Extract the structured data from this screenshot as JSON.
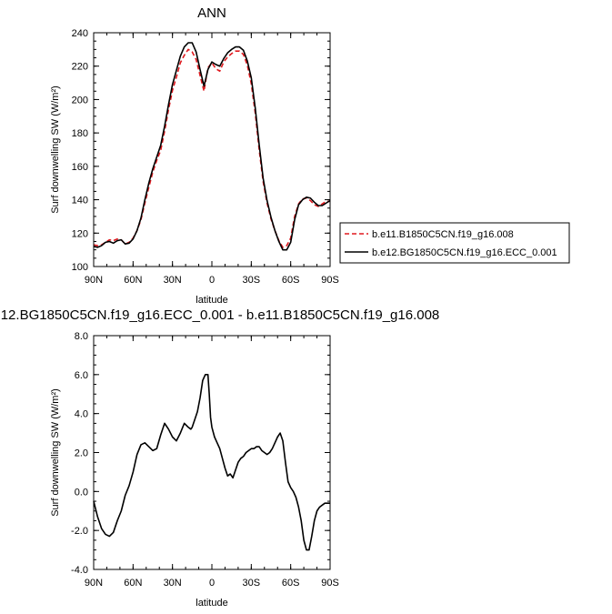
{
  "chart_data": [
    {
      "type": "line",
      "title": "ANN",
      "xlabel": "latitude",
      "ylabel": "Surf downwelling SW (W/m²)",
      "ylim": [
        100,
        240
      ],
      "xlim": [
        90,
        -90
      ],
      "x_ticks": [
        {
          "value": 90,
          "label": "90N"
        },
        {
          "value": 60,
          "label": "60N"
        },
        {
          "value": 30,
          "label": "30N"
        },
        {
          "value": 0,
          "label": "0"
        },
        {
          "value": -30,
          "label": "30S"
        },
        {
          "value": -60,
          "label": "60S"
        },
        {
          "value": -90,
          "label": "90S"
        }
      ],
      "y_ticks": [
        {
          "value": 100,
          "label": "100"
        },
        {
          "value": 120,
          "label": "120"
        },
        {
          "value": 140,
          "label": "140"
        },
        {
          "value": 160,
          "label": "160"
        },
        {
          "value": 180,
          "label": "180"
        },
        {
          "value": 200,
          "label": "200"
        },
        {
          "value": 220,
          "label": "220"
        },
        {
          "value": 240,
          "label": "240"
        }
      ],
      "legend": {
        "placement": "right"
      },
      "series": [
        {
          "name": "b.e11.B1850C5CN.f19_g16.008",
          "color": "#e0191e",
          "dashed": true,
          "x": [
            90,
            87,
            84,
            81,
            78,
            75,
            72,
            69,
            66,
            63,
            60,
            57,
            54,
            51,
            48,
            45,
            42,
            39,
            36,
            33,
            30,
            27,
            24,
            21,
            18,
            15,
            12,
            9,
            6,
            3,
            0,
            -3,
            -6,
            -9,
            -12,
            -15,
            -18,
            -21,
            -24,
            -27,
            -30,
            -33,
            -36,
            -39,
            -42,
            -45,
            -48,
            -51,
            -54,
            -57,
            -60,
            -63,
            -66,
            -69,
            -72,
            -75,
            -78,
            -81,
            -84,
            -87,
            -90
          ],
          "y": [
            113,
            112.5,
            113,
            114.5,
            116,
            115.5,
            116.5,
            116,
            113.5,
            114.5,
            117,
            121.5,
            128,
            138,
            147.5,
            156.5,
            163.5,
            169.5,
            181,
            194,
            205.5,
            213.5,
            222,
            226.5,
            230,
            228.5,
            224,
            214.5,
            205,
            219,
            222,
            218.5,
            217,
            222.5,
            225.5,
            227.5,
            229,
            229,
            227,
            220.5,
            209.5,
            192,
            170,
            151,
            138,
            128.5,
            121.5,
            115.5,
            111.5,
            112.5,
            117,
            130,
            137.5,
            140.5,
            141,
            139.5,
            137,
            136,
            137.5,
            139,
            139
          ]
        },
        {
          "name": "b.e12.BG1850C5CN.f19_g16.ECC_0.001",
          "color": "#000000",
          "dashed": false,
          "x": [
            90,
            87,
            84,
            81,
            78,
            75,
            72,
            69,
            66,
            63,
            60,
            57,
            54,
            51,
            48,
            45,
            42,
            39,
            36,
            33,
            30,
            27,
            24,
            21,
            18,
            15,
            12,
            9,
            6,
            3,
            0,
            -3,
            -6,
            -9,
            -12,
            -15,
            -18,
            -21,
            -24,
            -27,
            -30,
            -33,
            -36,
            -39,
            -42,
            -45,
            -48,
            -51,
            -54,
            -57,
            -60,
            -63,
            -66,
            -69,
            -72,
            -75,
            -78,
            -81,
            -84,
            -87,
            -90
          ],
          "y": [
            112,
            111.5,
            112.5,
            114.5,
            115,
            114,
            115.5,
            116,
            113.5,
            114,
            116.5,
            121.5,
            129,
            140,
            150,
            158.5,
            165.5,
            172.5,
            184,
            197,
            209,
            217.5,
            226,
            231.5,
            234,
            234,
            228.5,
            218,
            208,
            218,
            222.5,
            221,
            220,
            224.5,
            228,
            230,
            231.5,
            231.5,
            229.5,
            223,
            213,
            195,
            173,
            153,
            139.5,
            129.5,
            121.5,
            115,
            110,
            110,
            114.5,
            128,
            137,
            140,
            141.5,
            141,
            138.5,
            136.5,
            136.5,
            138,
            139.5
          ]
        }
      ]
    },
    {
      "type": "line",
      "title": "12.BG1850C5CN.f19_g16.ECC_0.001 - b.e11.B1850C5CN.f19_g16.008",
      "xlabel": "latitude",
      "ylabel": "Surf downwelling SW (W/m²)",
      "ylim": [
        -4,
        8
      ],
      "xlim": [
        90,
        -90
      ],
      "x_ticks": [
        {
          "value": 90,
          "label": "90N"
        },
        {
          "value": 60,
          "label": "60N"
        },
        {
          "value": 30,
          "label": "30N"
        },
        {
          "value": 0,
          "label": "0"
        },
        {
          "value": -30,
          "label": "30S"
        },
        {
          "value": -60,
          "label": "60S"
        },
        {
          "value": -90,
          "label": "90S"
        }
      ],
      "y_ticks": [
        {
          "value": -4,
          "label": "-4.0"
        },
        {
          "value": -2,
          "label": "-2.0"
        },
        {
          "value": 0,
          "label": "0.0"
        },
        {
          "value": 2,
          "label": "2.0"
        },
        {
          "value": 4,
          "label": "4.0"
        },
        {
          "value": 6,
          "label": "6.0"
        },
        {
          "value": 8,
          "label": "8.0"
        }
      ],
      "series": [
        {
          "color": "#000000",
          "dashed": false,
          "x": [
            90,
            87,
            84,
            81,
            78,
            75,
            72,
            69,
            66,
            63,
            60,
            57,
            54,
            51,
            48,
            45,
            42,
            39,
            36,
            33,
            30,
            27,
            24,
            21,
            18,
            16,
            15,
            13,
            11,
            9,
            7,
            5,
            3,
            2,
            1,
            0,
            -2,
            -4,
            -6,
            -8,
            -10,
            -12,
            -14,
            -16,
            -18,
            -20,
            -22,
            -24,
            -26,
            -28,
            -30,
            -32,
            -34,
            -36,
            -38,
            -40,
            -42,
            -44,
            -46,
            -48,
            -50,
            -52,
            -54,
            -56,
            -58,
            -60,
            -62,
            -64,
            -66,
            -68,
            -70,
            -72,
            -74,
            -76,
            -78,
            -80,
            -82,
            -84,
            -86,
            -88,
            -90
          ],
          "y": [
            -0.5,
            -1.3,
            -1.9,
            -2.2,
            -2.3,
            -2.1,
            -1.5,
            -1.0,
            -0.2,
            0.3,
            1.0,
            1.9,
            2.4,
            2.5,
            2.3,
            2.1,
            2.2,
            2.9,
            3.5,
            3.2,
            2.8,
            2.6,
            3.0,
            3.5,
            3.3,
            3.2,
            3.3,
            3.7,
            4.1,
            4.8,
            5.7,
            6.0,
            6.0,
            5.0,
            3.8,
            3.3,
            2.8,
            2.5,
            2.2,
            1.7,
            1.2,
            0.8,
            0.9,
            0.7,
            1.1,
            1.5,
            1.7,
            1.8,
            2.0,
            2.1,
            2.2,
            2.2,
            2.3,
            2.3,
            2.1,
            2.0,
            1.9,
            2.0,
            2.2,
            2.5,
            2.8,
            3.0,
            2.6,
            1.5,
            0.5,
            0.2,
            0.0,
            -0.3,
            -0.8,
            -1.5,
            -2.5,
            -3.0,
            -3.0,
            -2.3,
            -1.5,
            -1.0,
            -0.8,
            -0.7,
            -0.6,
            -0.6,
            -0.6
          ]
        }
      ]
    }
  ]
}
